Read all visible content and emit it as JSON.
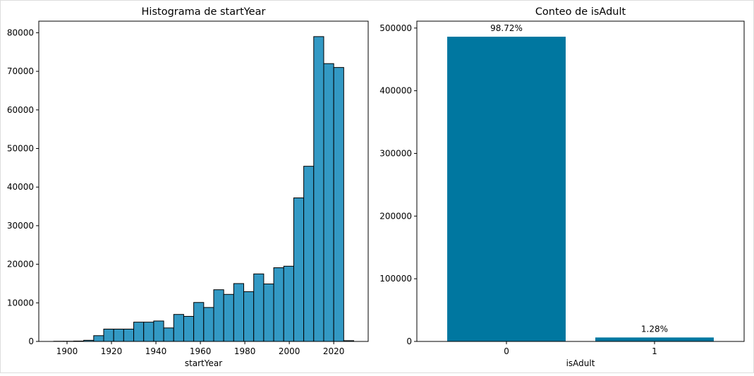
{
  "chart_data": [
    {
      "type": "histogram",
      "title": "Histograma de startYear",
      "x_label": "startYear",
      "bins": [
        1894,
        1898.5,
        1903,
        1907.5,
        1912,
        1916.5,
        1921,
        1925.5,
        1930,
        1934.5,
        1939,
        1943.5,
        1948,
        1952.5,
        1957,
        1961.5,
        1966,
        1970.5,
        1975,
        1979.5,
        1984,
        1988.5,
        1993,
        1997.5,
        2002,
        2006.5,
        2011,
        2015.5,
        2020,
        2024.5,
        2029
      ],
      "values": [
        50,
        50,
        100,
        300,
        1500,
        3200,
        3200,
        3200,
        5000,
        5000,
        5300,
        3500,
        7000,
        6500,
        10100,
        8800,
        13400,
        12200,
        15000,
        12900,
        17500,
        14900,
        19100,
        19500,
        37200,
        45400,
        79000,
        72000,
        71000,
        200
      ],
      "color": "#3399c4",
      "edge_color": "#000000",
      "xlim": [
        1887.3,
        2035.5
      ],
      "xticks": [
        1900,
        1920,
        1940,
        1960,
        1980,
        2000,
        2020
      ],
      "ylim": [
        0,
        83000
      ],
      "yticks": [
        0,
        10000,
        20000,
        30000,
        40000,
        50000,
        60000,
        70000,
        80000
      ]
    },
    {
      "type": "bar",
      "title": "Conteo de isAdult",
      "x_label": "isAdult",
      "categories": [
        "0",
        "1"
      ],
      "values": [
        486200,
        6300
      ],
      "annotations": [
        "98.72%",
        "1.28%"
      ],
      "color": "#0077a0",
      "ylim": [
        0,
        511000
      ],
      "yticks": [
        0,
        100000,
        200000,
        300000,
        400000,
        500000
      ]
    }
  ]
}
